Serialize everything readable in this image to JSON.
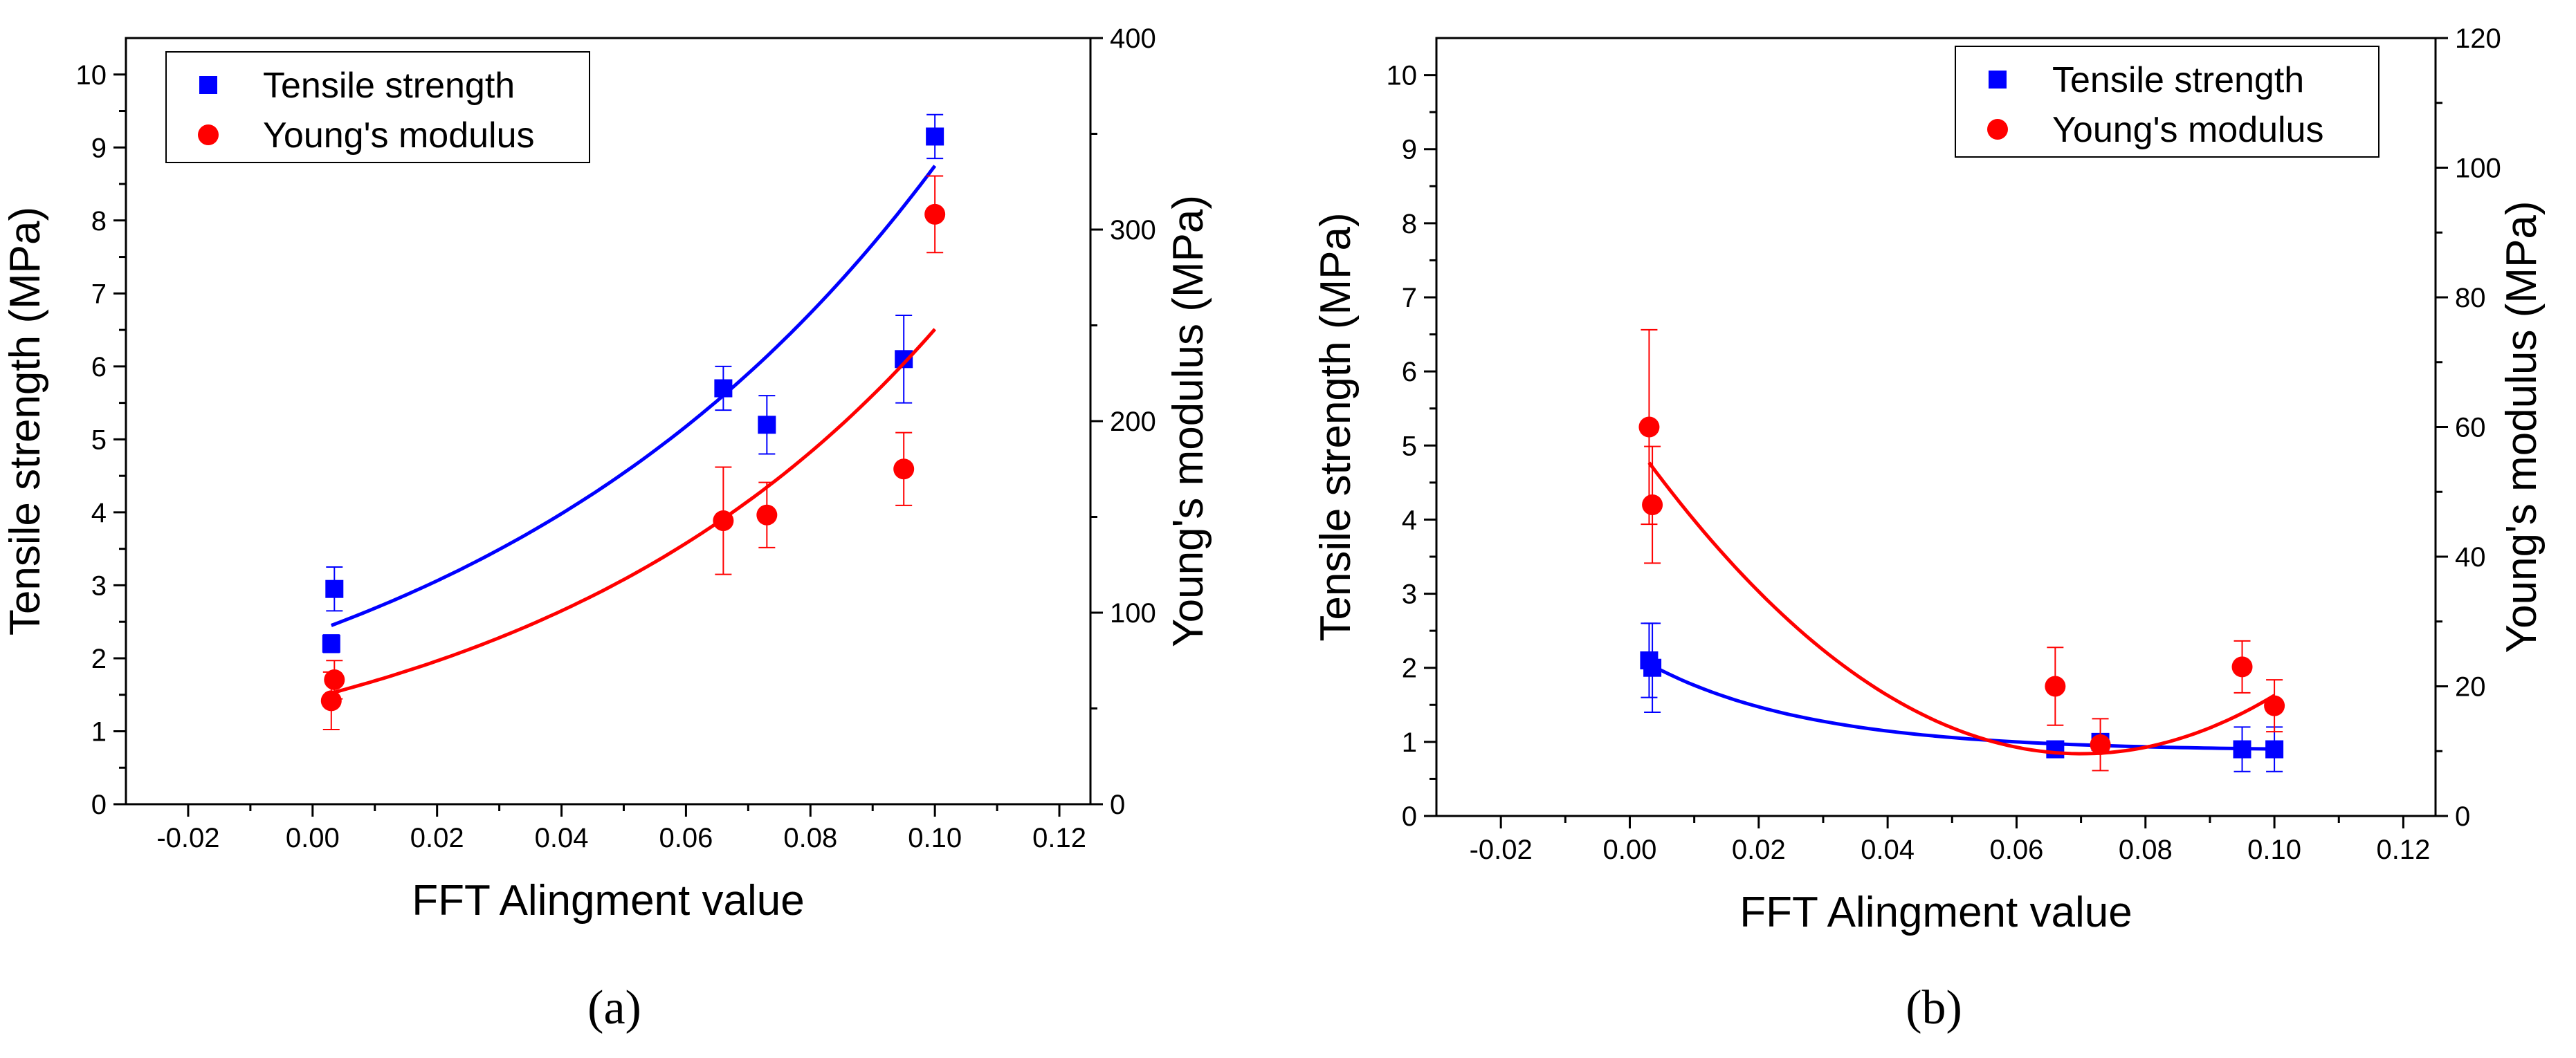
{
  "chart_data": [
    {
      "panel": "a",
      "panel_label": "(a)",
      "type": "scatter",
      "xlabel": "FFT Alingment value",
      "ylabel": "Tensile strength (MPa)",
      "y2label": "Young's modulus (MPa)",
      "xlim": [
        -0.03,
        0.125
      ],
      "ylim": [
        0,
        10.5
      ],
      "y2lim": [
        0,
        400
      ],
      "xticks": [
        "-0.02",
        "0.00",
        "0.02",
        "0.04",
        "0.06",
        "0.08",
        "0.10",
        "0.12"
      ],
      "yticks": [
        "0",
        "1",
        "2",
        "3",
        "4",
        "5",
        "6",
        "7",
        "8",
        "9",
        "10"
      ],
      "y2ticks": [
        "0",
        "100",
        "200",
        "300",
        "400"
      ],
      "legend_position": "top-left",
      "series": [
        {
          "name": "Tensile strength",
          "axis": "left",
          "marker": "square",
          "color": "#0000ff",
          "x": [
            0.003,
            0.0035,
            0.066,
            0.073,
            0.095,
            0.1
          ],
          "y": [
            2.2,
            2.95,
            5.7,
            5.2,
            6.1,
            9.15
          ],
          "err": [
            0.12,
            0.3,
            0.3,
            0.4,
            0.6,
            0.3
          ],
          "fit": "exponential",
          "fit_x_range": [
            0.003,
            0.1
          ],
          "fit_y_start": 2.45,
          "fit_y_end": 8.75
        },
        {
          "name": "Young's modulus",
          "axis": "right",
          "marker": "circle",
          "color": "#ff0000",
          "x": [
            0.003,
            0.0035,
            0.066,
            0.073,
            0.095,
            0.1
          ],
          "y": [
            54,
            65,
            148,
            151,
            175,
            308
          ],
          "err": [
            15,
            10,
            28,
            17,
            19,
            20
          ],
          "fit": "exponential",
          "fit_x_range": [
            0.003,
            0.1
          ],
          "fit_y_start": 58,
          "fit_y_end": 248
        }
      ]
    },
    {
      "panel": "b",
      "panel_label": "(b)",
      "type": "scatter",
      "xlabel": "FFT Alingment value",
      "ylabel": "Tensile strength (MPa)",
      "y2label": "Young's modulus (MPa)",
      "xlim": [
        -0.03,
        0.125
      ],
      "ylim": [
        0,
        10.5
      ],
      "y2lim": [
        0,
        120
      ],
      "xticks": [
        "-0.02",
        "0.00",
        "0.02",
        "0.04",
        "0.06",
        "0.08",
        "0.10",
        "0.12"
      ],
      "yticks": [
        "0",
        "1",
        "2",
        "3",
        "4",
        "5",
        "6",
        "7",
        "8",
        "9",
        "10"
      ],
      "y2ticks": [
        "0",
        "20",
        "40",
        "60",
        "80",
        "100",
        "120"
      ],
      "legend_position": "top-right",
      "series": [
        {
          "name": "Tensile strength",
          "axis": "left",
          "marker": "square",
          "color": "#0000ff",
          "x": [
            0.003,
            0.0035,
            0.066,
            0.073,
            0.095,
            0.1
          ],
          "y": [
            2.1,
            2.0,
            0.9,
            1.0,
            0.9,
            0.9
          ],
          "err": [
            0.5,
            0.6,
            0.05,
            0.1,
            0.3,
            0.3
          ],
          "fit": "exponential-decay",
          "fit_x_range": [
            0.003,
            0.1
          ],
          "fit_y_start": 2.05,
          "fit_y_end": 0.9
        },
        {
          "name": "Young's modulus",
          "axis": "right",
          "marker": "circle",
          "color": "#ff0000",
          "x": [
            0.003,
            0.0035,
            0.066,
            0.073,
            0.095,
            0.1
          ],
          "y": [
            60,
            48,
            20,
            11,
            23,
            17
          ],
          "err": [
            15,
            9,
            6,
            4,
            4,
            4
          ],
          "fit": "quadratic",
          "fit_x_range": [
            0.003,
            0.1
          ],
          "fit_y_start": 54.5,
          "fit_y_end": 18.6
        }
      ]
    }
  ]
}
